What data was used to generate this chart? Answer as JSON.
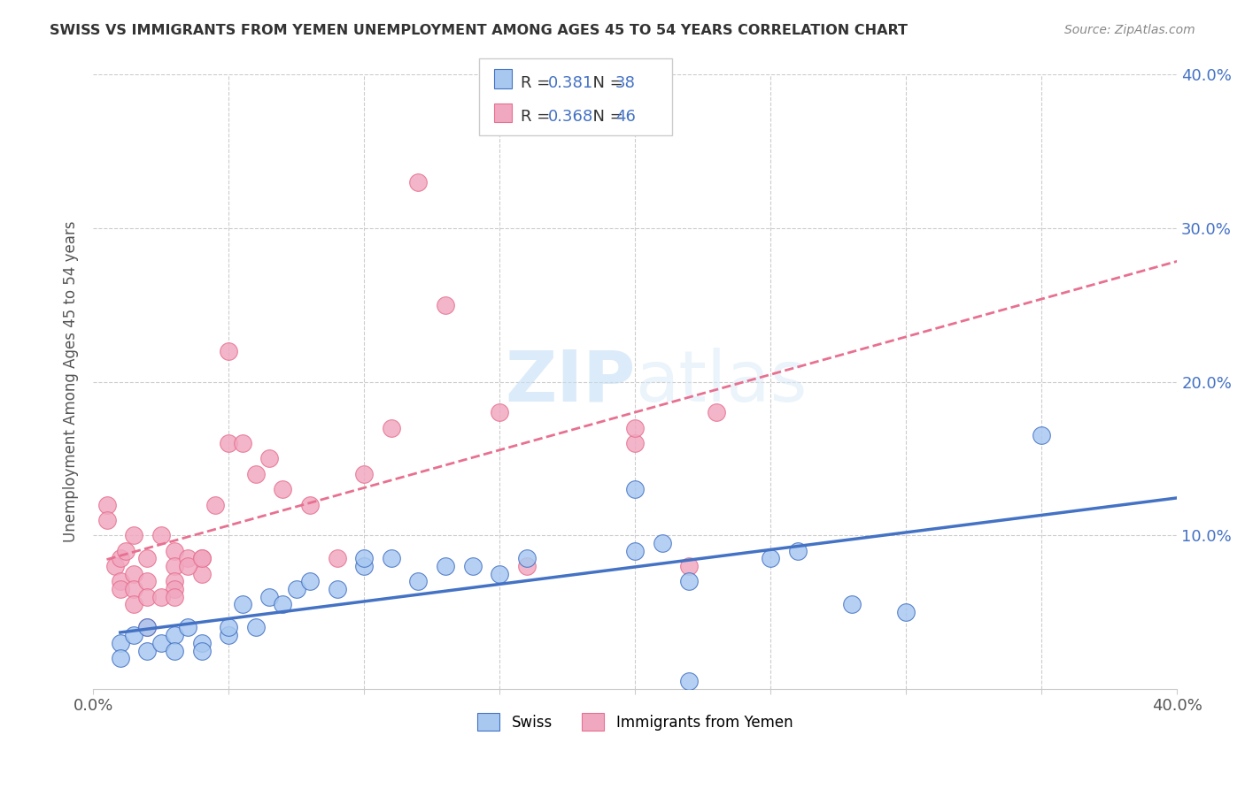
{
  "title": "SWISS VS IMMIGRANTS FROM YEMEN UNEMPLOYMENT AMONG AGES 45 TO 54 YEARS CORRELATION CHART",
  "source": "Source: ZipAtlas.com",
  "xlabel": "",
  "ylabel": "Unemployment Among Ages 45 to 54 years",
  "xlim": [
    0,
    0.4
  ],
  "ylim": [
    0,
    0.4
  ],
  "legend_labels": [
    "Swiss",
    "Immigrants from Yemen"
  ],
  "blue_R": "0.381",
  "blue_N": "38",
  "pink_R": "0.368",
  "pink_N": "46",
  "blue_color": "#a8c8f0",
  "pink_color": "#f0a8c0",
  "blue_line_color": "#4472c4",
  "pink_line_color": "#e87090",
  "watermark_zip": "ZIP",
  "watermark_atlas": "atlas",
  "blue_scatter_x": [
    0.01,
    0.01,
    0.015,
    0.02,
    0.02,
    0.025,
    0.03,
    0.03,
    0.035,
    0.04,
    0.04,
    0.05,
    0.05,
    0.055,
    0.06,
    0.065,
    0.07,
    0.075,
    0.08,
    0.09,
    0.1,
    0.1,
    0.11,
    0.12,
    0.13,
    0.14,
    0.15,
    0.16,
    0.2,
    0.2,
    0.21,
    0.22,
    0.25,
    0.26,
    0.28,
    0.3,
    0.35,
    0.22
  ],
  "blue_scatter_y": [
    0.03,
    0.02,
    0.035,
    0.04,
    0.025,
    0.03,
    0.035,
    0.025,
    0.04,
    0.03,
    0.025,
    0.035,
    0.04,
    0.055,
    0.04,
    0.06,
    0.055,
    0.065,
    0.07,
    0.065,
    0.08,
    0.085,
    0.085,
    0.07,
    0.08,
    0.08,
    0.075,
    0.085,
    0.13,
    0.09,
    0.095,
    0.07,
    0.085,
    0.09,
    0.055,
    0.05,
    0.165,
    0.005
  ],
  "pink_scatter_x": [
    0.005,
    0.005,
    0.008,
    0.01,
    0.01,
    0.01,
    0.012,
    0.015,
    0.015,
    0.015,
    0.015,
    0.02,
    0.02,
    0.02,
    0.025,
    0.03,
    0.03,
    0.03,
    0.03,
    0.035,
    0.04,
    0.04,
    0.045,
    0.05,
    0.05,
    0.055,
    0.06,
    0.065,
    0.07,
    0.08,
    0.09,
    0.1,
    0.11,
    0.12,
    0.13,
    0.15,
    0.16,
    0.2,
    0.22,
    0.23,
    0.02,
    0.025,
    0.03,
    0.035,
    0.04,
    0.2
  ],
  "pink_scatter_y": [
    0.12,
    0.11,
    0.08,
    0.085,
    0.07,
    0.065,
    0.09,
    0.075,
    0.065,
    0.055,
    0.1,
    0.085,
    0.07,
    0.06,
    0.1,
    0.09,
    0.08,
    0.07,
    0.065,
    0.085,
    0.085,
    0.075,
    0.12,
    0.16,
    0.22,
    0.16,
    0.14,
    0.15,
    0.13,
    0.12,
    0.085,
    0.14,
    0.17,
    0.33,
    0.25,
    0.18,
    0.08,
    0.16,
    0.08,
    0.18,
    0.04,
    0.06,
    0.06,
    0.08,
    0.085,
    0.17
  ]
}
